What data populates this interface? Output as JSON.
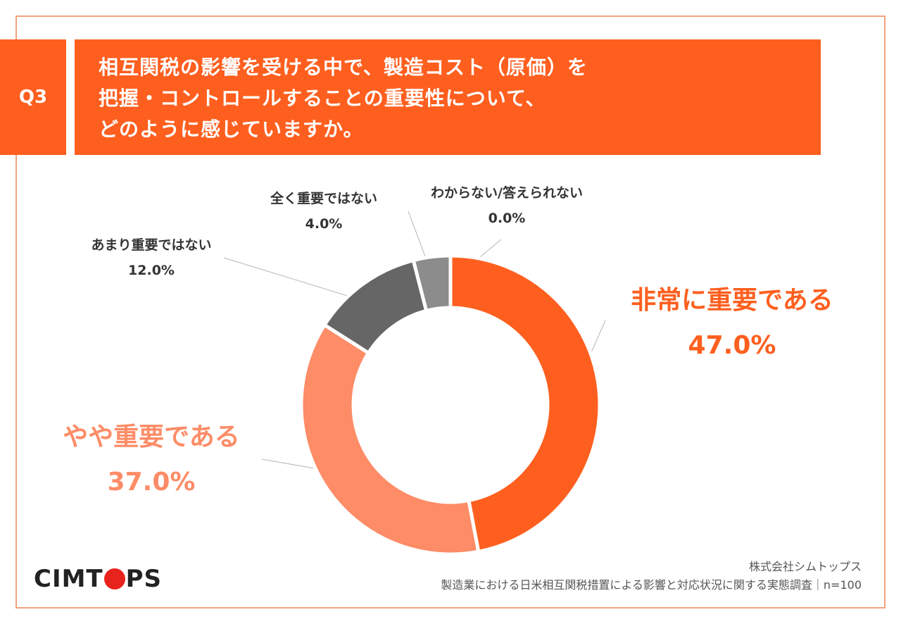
{
  "question": {
    "badge": "Q3",
    "lines": [
      "相互関税の影響を受ける中で、製造コスト（原価）を",
      "把握・コントロールすることの重要性について、",
      "どのように感じていますか。"
    ]
  },
  "chart_data": {
    "type": "pie",
    "variant": "donut",
    "title": "相互関税の影響を受ける中で、製造コスト（原価）を把握・コントロールすることの重要性について、どのように感じていますか。",
    "categories": [
      "非常に重要である",
      "やや重要である",
      "あまり重要ではない",
      "全く重要ではない",
      "わからない/答えられない"
    ],
    "values": [
      47.0,
      37.0,
      12.0,
      4.0,
      0.0
    ],
    "value_labels": [
      "47.0%",
      "37.0%",
      "12.0%",
      "4.0%",
      "0.0%"
    ],
    "colors": [
      "#fe5f1f",
      "#fd8c67",
      "#666666",
      "#8c8c8c",
      "#bbbbbb"
    ],
    "start_angle": "12 o'clock",
    "direction": "clockwise"
  },
  "footer": {
    "logo_left": "CIMT",
    "logo_right": "PS",
    "company": "株式会社シムトップス",
    "survey": "製造業における日米相互関税措置による影響と対応状況に関する実態調査｜n=100"
  }
}
